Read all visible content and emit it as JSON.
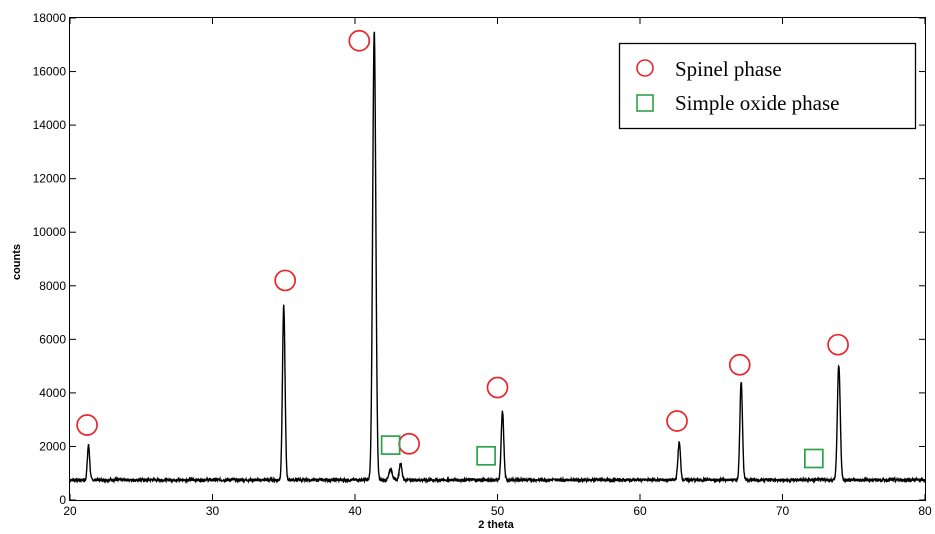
{
  "chart_data": {
    "type": "line",
    "xlabel": "2 theta",
    "ylabel": "counts",
    "xlim": [
      20,
      80
    ],
    "ylim": [
      0,
      18000
    ],
    "x_ticks": [
      20,
      30,
      40,
      50,
      60,
      70,
      80
    ],
    "y_ticks": [
      0,
      2000,
      4000,
      6000,
      8000,
      10000,
      12000,
      14000,
      16000,
      18000
    ],
    "grid": false,
    "legend_position": "top-right",
    "line_color": "#000000",
    "baseline": 750,
    "peaks": [
      {
        "x": 21.3,
        "y": 2050,
        "w": 0.08
      },
      {
        "x": 35.0,
        "y": 7250,
        "w": 0.09
      },
      {
        "x": 41.35,
        "y": 17500,
        "w": 0.11
      },
      {
        "x": 42.5,
        "y": 1150,
        "w": 0.12
      },
      {
        "x": 43.2,
        "y": 1400,
        "w": 0.09
      },
      {
        "x": 50.35,
        "y": 3300,
        "w": 0.09
      },
      {
        "x": 62.75,
        "y": 2150,
        "w": 0.09
      },
      {
        "x": 67.1,
        "y": 4450,
        "w": 0.09
      },
      {
        "x": 73.95,
        "y": 5050,
        "w": 0.1
      }
    ],
    "series": [
      {
        "name": "Spinel phase",
        "marker": "circle",
        "color": "#e8252b",
        "points": [
          {
            "x": 21.2,
            "y": 2800
          },
          {
            "x": 35.1,
            "y": 8200
          },
          {
            "x": 40.3,
            "y": 17150
          },
          {
            "x": 43.8,
            "y": 2100
          },
          {
            "x": 50.0,
            "y": 4200
          },
          {
            "x": 62.6,
            "y": 2950
          },
          {
            "x": 67.0,
            "y": 5050
          },
          {
            "x": 73.9,
            "y": 5800
          }
        ]
      },
      {
        "name": "Simple oxide phase",
        "marker": "square",
        "color": "#2ca24a",
        "points": [
          {
            "x": 42.5,
            "y": 2050
          },
          {
            "x": 49.2,
            "y": 1650
          },
          {
            "x": 72.2,
            "y": 1550
          }
        ]
      }
    ]
  }
}
